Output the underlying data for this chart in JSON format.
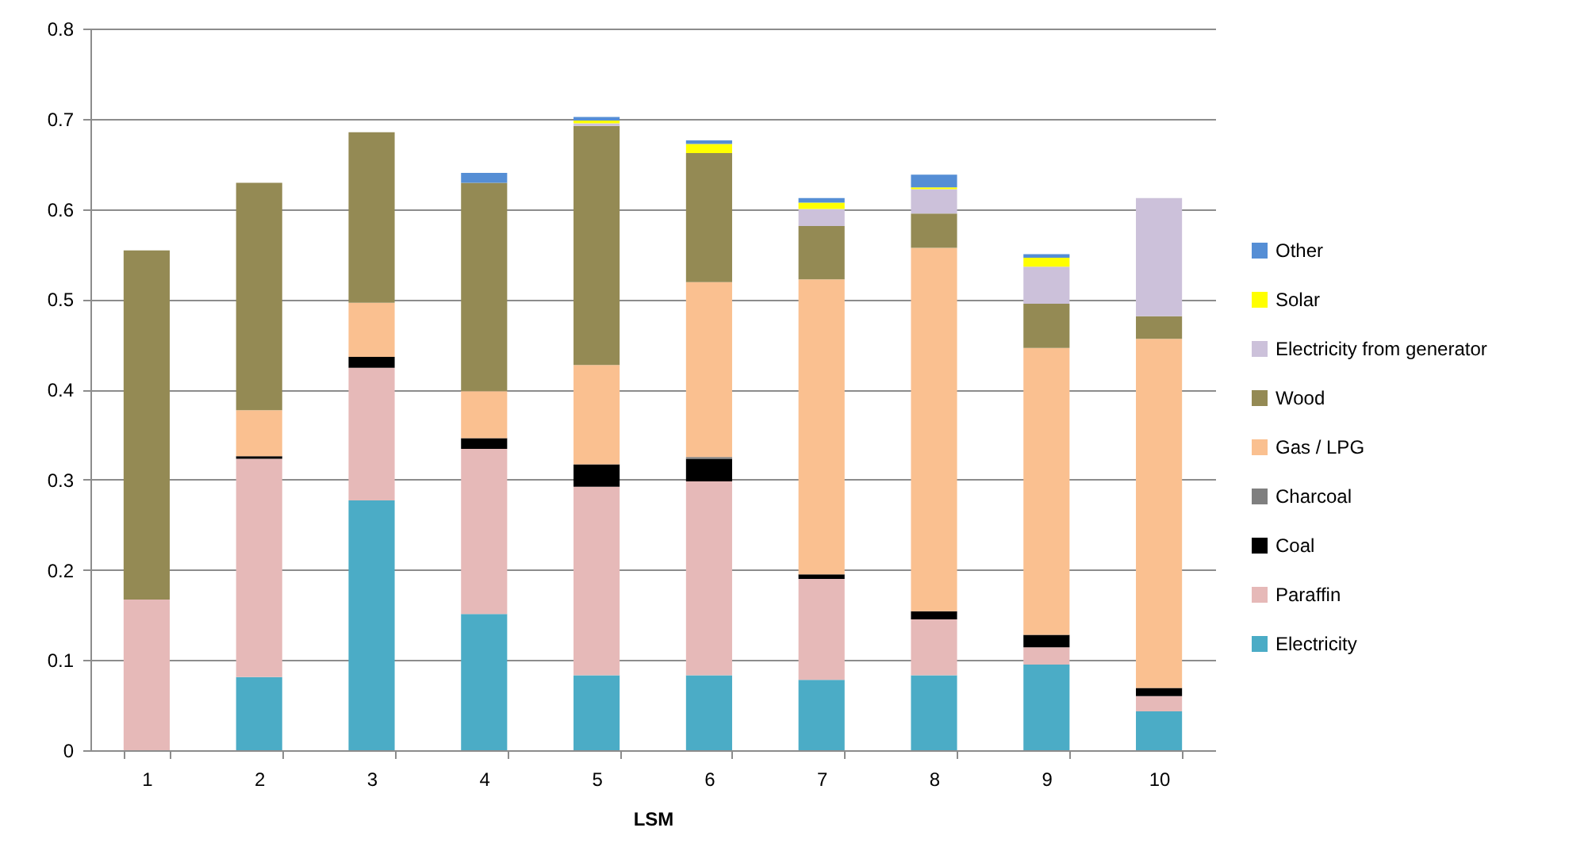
{
  "chart_data": {
    "type": "bar",
    "stacked": true,
    "xlabel": "LSM",
    "categories": [
      "1",
      "2",
      "3",
      "4",
      "5",
      "6",
      "7",
      "8",
      "9",
      "10"
    ],
    "ylim": [
      0,
      0.8
    ],
    "yticks": [
      0,
      0.1,
      0.2,
      0.3,
      0.4,
      0.5,
      0.6,
      0.7,
      0.8
    ],
    "grid": "y",
    "legend": "right",
    "series": [
      {
        "name": "Electricity",
        "color": "#4bacc6",
        "values": [
          null,
          0.081,
          0.277,
          0.151,
          0.083,
          0.083,
          0.078,
          0.083,
          0.095,
          0.043
        ]
      },
      {
        "name": "Paraffin",
        "color": "#e6b9b8",
        "values": [
          0.167,
          0.242,
          0.147,
          0.183,
          0.209,
          0.215,
          0.112,
          0.062,
          0.019,
          0.017
        ]
      },
      {
        "name": "Coal",
        "color": "#000000",
        "values": [
          null,
          0.003,
          0.012,
          0.012,
          0.025,
          0.025,
          0.005,
          0.009,
          0.014,
          0.009
        ]
      },
      {
        "name": "Charcoal",
        "color": "#7f7f7f",
        "values": [
          null,
          null,
          null,
          null,
          null,
          0.002,
          null,
          null,
          null,
          null
        ]
      },
      {
        "name": "Gas / LPG",
        "color": "#fac090",
        "values": [
          null,
          0.051,
          0.06,
          0.052,
          0.11,
          0.194,
          0.327,
          0.403,
          0.318,
          0.387
        ]
      },
      {
        "name": "Wood",
        "color": "#948a54",
        "values": [
          0.387,
          0.252,
          0.189,
          0.231,
          0.265,
          0.143,
          0.059,
          0.038,
          0.049,
          0.025
        ]
      },
      {
        "name": "Electricity from generator",
        "color": "#ccc1da",
        "values": [
          null,
          null,
          null,
          null,
          0.003,
          null,
          0.019,
          0.027,
          0.041,
          0.131
        ]
      },
      {
        "name": "Solar",
        "color": "#ffff00",
        "values": [
          null,
          null,
          null,
          null,
          0.003,
          0.01,
          0.007,
          0.002,
          0.01,
          null
        ]
      },
      {
        "name": "Other",
        "color": "#558ed5",
        "values": [
          null,
          null,
          null,
          0.011,
          0.004,
          0.004,
          0.005,
          0.014,
          0.004,
          null
        ]
      }
    ]
  }
}
